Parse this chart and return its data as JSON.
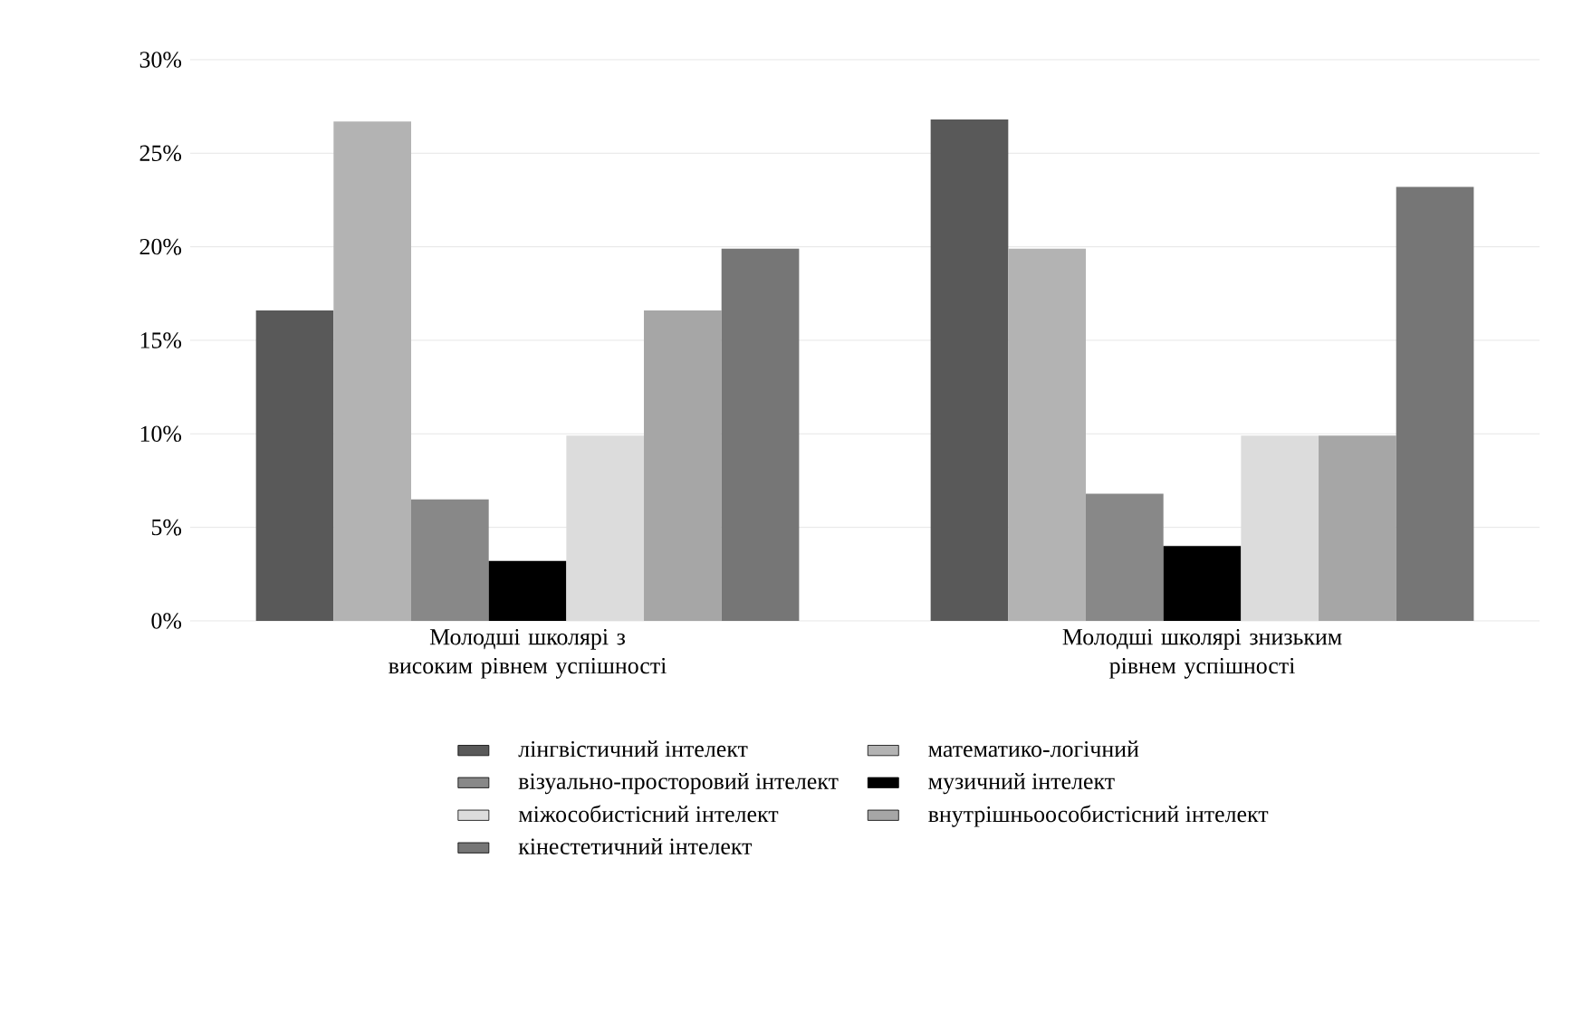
{
  "chart_data": {
    "type": "bar",
    "categories": [
      "Молодші школярі з високим рівнем успішності",
      "Молодші школярі знизьким рівнем успішності"
    ],
    "series": [
      {
        "name": "лінгвістичний інтелект",
        "color": "#595959",
        "values": [
          16.6,
          26.8
        ]
      },
      {
        "name": "математико-логічний",
        "color": "#b3b3b3",
        "values": [
          26.7,
          19.9
        ]
      },
      {
        "name": "візуально-просторовий інтелект",
        "color": "#888888",
        "values": [
          6.5,
          6.8
        ]
      },
      {
        "name": "музичний інтелект",
        "color": "#000000",
        "values": [
          3.2,
          4
        ]
      },
      {
        "name": "міжособистісний інтелект",
        "color": "#dcdcdc",
        "values": [
          9.9,
          9.9
        ]
      },
      {
        "name": "внутрішньоособистісний інтелект",
        "color": "#a6a6a6",
        "values": [
          16.6,
          9.9
        ]
      },
      {
        "name": "кінестетичний інтелект",
        "color": "#767676",
        "values": [
          19.9,
          23.2
        ]
      }
    ],
    "ylim": [
      0,
      30
    ],
    "yticks": [
      {
        "value": 0,
        "label": "0%"
      },
      {
        "value": 5,
        "label": "5%"
      },
      {
        "value": 10,
        "label": "10%"
      },
      {
        "value": 15,
        "label": "15%"
      },
      {
        "value": 20,
        "label": "20%"
      },
      {
        "value": 25,
        "label": "25%"
      },
      {
        "value": 30,
        "label": "30%"
      }
    ],
    "grid": "y",
    "legend": "bottom"
  }
}
